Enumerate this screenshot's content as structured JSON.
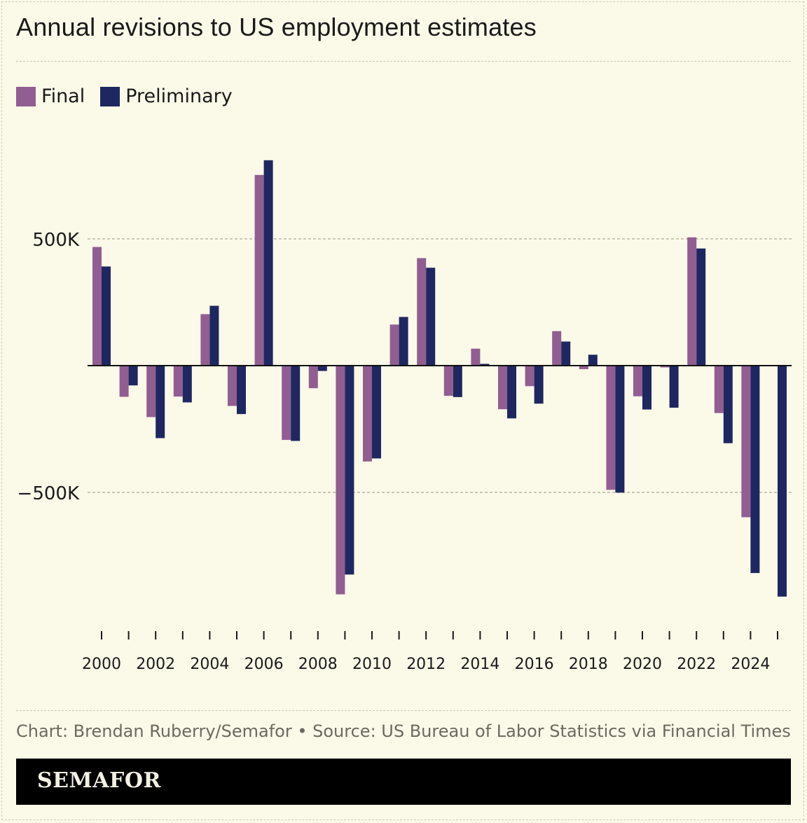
{
  "title": "Annual revisions to US employment estimates",
  "legend": [
    {
      "label": "Final",
      "color": "#915e91"
    },
    {
      "label": "Preliminary",
      "color": "#1e2760"
    }
  ],
  "source": "Chart: Brendan Ruberry/Semafor • Source: US Bureau of Labor Statistics via Financial Times",
  "brand": "SEMAFOR",
  "chart_data": {
    "type": "bar",
    "title": "Annual revisions to US employment estimates",
    "xlabel": "",
    "ylabel": "",
    "ylim": [
      -1050000,
      1150000
    ],
    "y_ticks": [
      {
        "value": 500000,
        "label": "500K"
      },
      {
        "value": -500000,
        "label": "−500K"
      }
    ],
    "categories": [
      "2000",
      "2001",
      "2002",
      "2003",
      "2004",
      "2005",
      "2006",
      "2007",
      "2008",
      "2009",
      "2010",
      "2011",
      "2012",
      "2013",
      "2014",
      "2015",
      "2016",
      "2017",
      "2018",
      "2019",
      "2020",
      "2021",
      "2022",
      "2023",
      "2024",
      "2025"
    ],
    "x_tick_labels": [
      "2000",
      "",
      "2002",
      "",
      "2004",
      "",
      "2006",
      "",
      "2008",
      "",
      "2010",
      "",
      "2012",
      "",
      "2014",
      "",
      "2016",
      "",
      "2018",
      "",
      "2020",
      "",
      "2022",
      "",
      "2024",
      ""
    ],
    "series": [
      {
        "name": "Final",
        "color": "#915e91",
        "values": [
          468000,
          -123000,
          -203000,
          -122000,
          203000,
          -159000,
          752000,
          -293000,
          -89000,
          -902000,
          -378000,
          162000,
          424000,
          -119000,
          67000,
          -172000,
          -81000,
          136000,
          -14000,
          -490000,
          -121000,
          -7000,
          506000,
          -187000,
          -598000,
          null
        ]
      },
      {
        "name": "Preliminary",
        "color": "#1e2760",
        "values": [
          391000,
          -78000,
          -286000,
          -145000,
          236000,
          -191000,
          810000,
          -297000,
          -21000,
          -824000,
          -366000,
          192000,
          386000,
          -124000,
          7000,
          -208000,
          -150000,
          95000,
          43000,
          -501000,
          -173000,
          -166000,
          462000,
          -306000,
          -818000,
          -911000
        ]
      }
    ]
  }
}
